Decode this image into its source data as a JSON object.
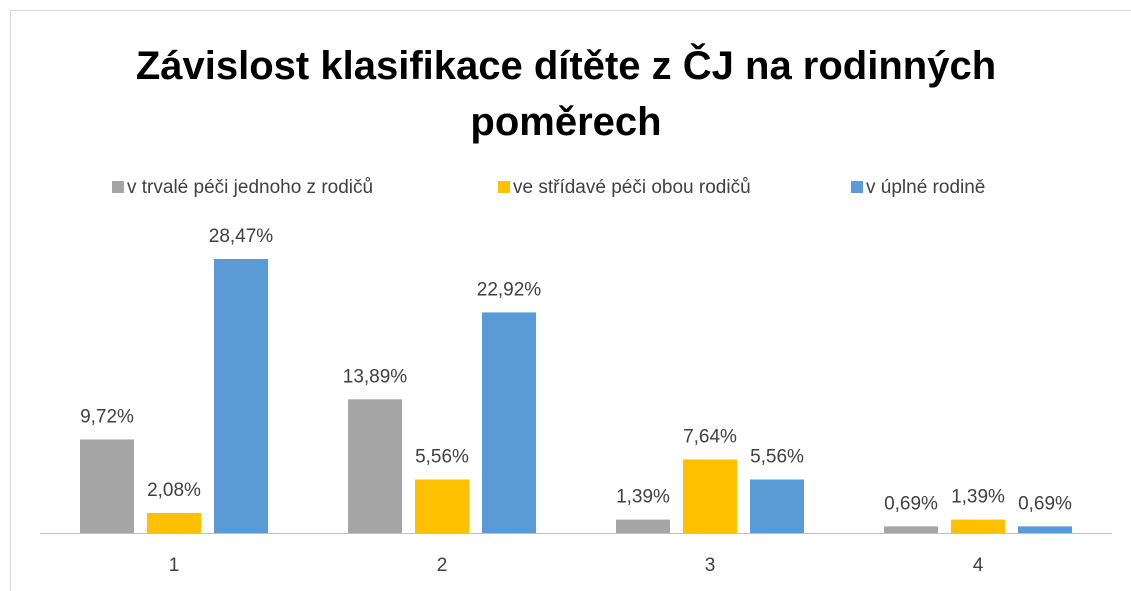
{
  "chart_data": {
    "type": "bar",
    "title": "Závislost klasifikace dítěte z ČJ na rodinných poměrech",
    "categories": [
      "1",
      "2",
      "3",
      "4"
    ],
    "series": [
      {
        "name": "v trvalé péči jednoho z rodičů",
        "color": "#a5a5a5",
        "values": [
          9.72,
          13.89,
          1.39,
          0.69
        ],
        "value_labels": [
          "9,72%",
          "13,89%",
          "1,39%",
          "0,69%"
        ]
      },
      {
        "name": "ve střídavé péči obou rodičů",
        "color": "#ffc000",
        "values": [
          2.08,
          5.56,
          7.64,
          1.39
        ],
        "value_labels": [
          "2,08%",
          "5,56%",
          "7,64%",
          "1,39%"
        ]
      },
      {
        "name": "v úplné rodině",
        "color": "#5b9bd5",
        "values": [
          28.47,
          22.92,
          5.56,
          0.69
        ],
        "value_labels": [
          "28,47%",
          "22,92%",
          "5,56%",
          "0,69%"
        ]
      }
    ],
    "legend": "top"
  }
}
